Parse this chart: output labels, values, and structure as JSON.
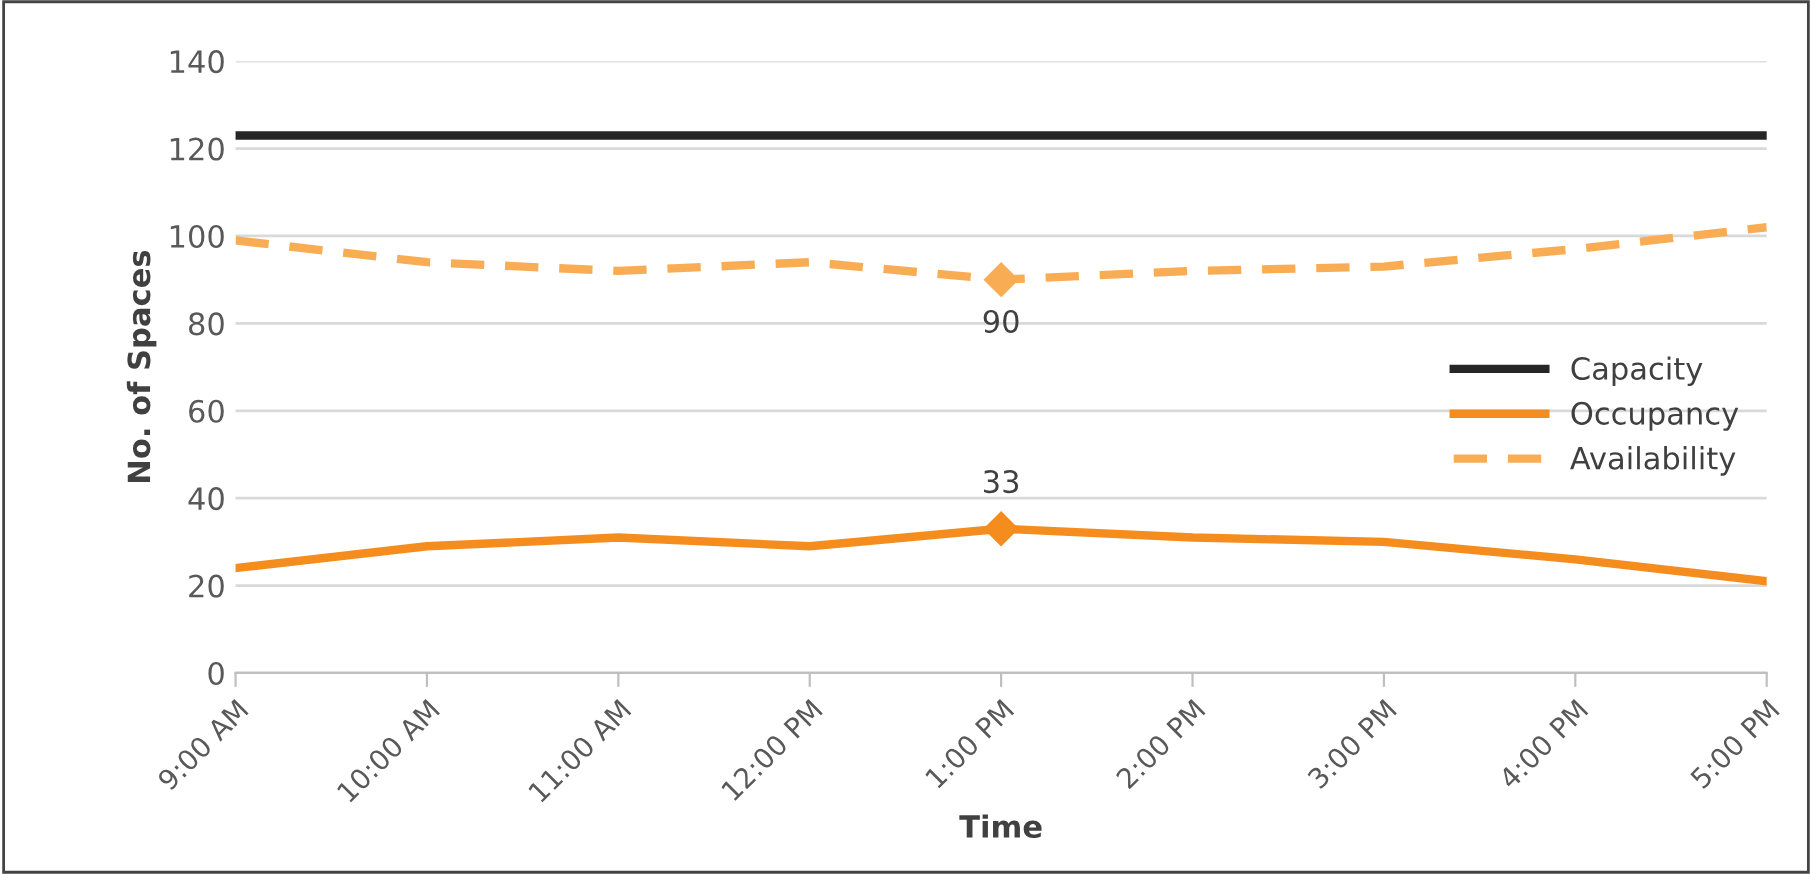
{
  "chart_data": {
    "type": "line",
    "xlabel": "Time",
    "ylabel": "No. of Spaces",
    "categories": [
      "9:00 AM",
      "10:00 AM",
      "11:00 AM",
      "12:00 PM",
      "1:00 PM",
      "2:00 PM",
      "3:00 PM",
      "4:00 PM",
      "5:00 PM"
    ],
    "series": [
      {
        "name": "Capacity",
        "color": "#262626",
        "values": [
          123,
          123,
          123,
          123,
          123,
          123,
          123,
          123,
          123
        ]
      },
      {
        "name": "Occupancy",
        "color": "#f58c1e",
        "values": [
          24,
          29,
          31,
          29,
          33,
          31,
          30,
          26,
          21
        ],
        "value_labels": [
          null,
          null,
          null,
          null,
          "33",
          null,
          null,
          null,
          null
        ]
      },
      {
        "name": "Availability",
        "color": "#f8ad55",
        "line_style": "dashed",
        "values": [
          99,
          94,
          92,
          94,
          90,
          92,
          93,
          97,
          102
        ],
        "value_labels": [
          null,
          null,
          null,
          null,
          "90",
          null,
          null,
          null,
          null
        ]
      }
    ],
    "ylim": [
      0,
      140
    ],
    "yticks": [
      0,
      20,
      40,
      60,
      80,
      100,
      120,
      140
    ],
    "grid": "y",
    "legend": "right"
  }
}
